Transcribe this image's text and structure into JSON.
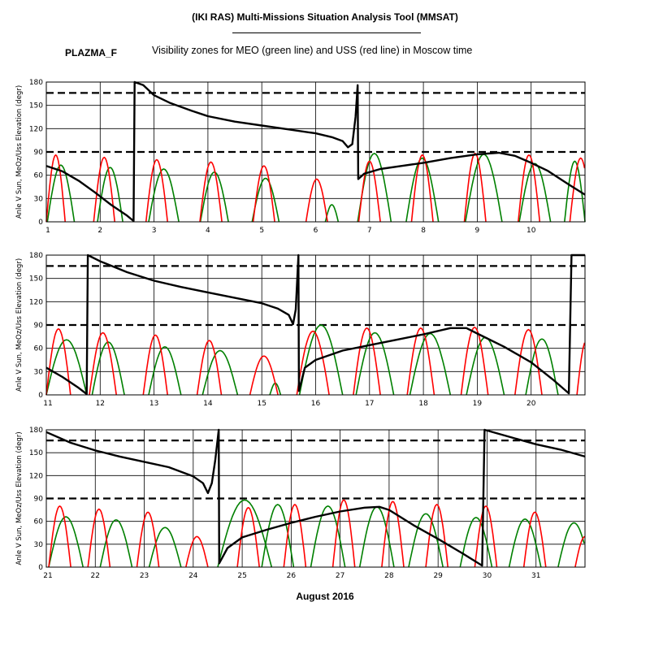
{
  "header": {
    "title": "(IKI RAS) Multi-Missions Situation Analysis Tool (MMSAT)",
    "mission": "PLAZMA_F",
    "subtitle": "Visibility zones for MEO (green line) and USS (red line) in Moscow time"
  },
  "chart_data": {
    "type": "line",
    "xlabel": "August 2016",
    "ylabel": "Anle V Sun, MeOz/Uss Elevation (degr)",
    "ylim": [
      0,
      180
    ],
    "yticks": [
      0,
      30,
      60,
      90,
      120,
      150,
      180
    ],
    "reference_lines": [
      90,
      166
    ],
    "grid": true,
    "colors": {
      "meo": "#008000",
      "uss": "#ff0000",
      "sun": "#000000"
    },
    "panels": [
      {
        "xlim": [
          1,
          11
        ],
        "xticks": [
          1,
          2,
          3,
          4,
          5,
          6,
          7,
          8,
          9,
          10
        ],
        "sun_angle": [
          [
            1.0,
            72
          ],
          [
            1.3,
            65
          ],
          [
            1.6,
            53
          ],
          [
            1.9,
            38
          ],
          [
            2.2,
            22
          ],
          [
            2.5,
            8
          ],
          [
            2.62,
            1
          ],
          [
            2.64,
            180
          ],
          [
            2.8,
            176
          ],
          [
            3.0,
            163
          ],
          [
            3.3,
            153
          ],
          [
            3.7,
            143
          ],
          [
            4.0,
            136
          ],
          [
            4.5,
            129
          ],
          [
            5.0,
            124
          ],
          [
            5.5,
            119
          ],
          [
            6.0,
            114
          ],
          [
            6.3,
            109
          ],
          [
            6.5,
            104
          ],
          [
            6.6,
            96
          ],
          [
            6.68,
            100
          ],
          [
            6.74,
            135
          ],
          [
            6.78,
            176
          ],
          [
            6.79,
            55
          ],
          [
            6.9,
            62
          ],
          [
            7.2,
            68
          ],
          [
            7.6,
            72
          ],
          [
            8.0,
            76
          ],
          [
            8.5,
            82
          ],
          [
            9.0,
            87
          ],
          [
            9.4,
            89
          ],
          [
            9.7,
            85
          ],
          [
            10.0,
            76
          ],
          [
            10.3,
            66
          ],
          [
            10.7,
            48
          ],
          [
            11.0,
            35
          ]
        ],
        "uss_passes": [
          [
            1.0,
            1.35,
            86
          ],
          [
            1.88,
            2.27,
            83
          ],
          [
            2.85,
            3.25,
            80
          ],
          [
            3.85,
            4.26,
            77
          ],
          [
            4.84,
            5.24,
            72
          ],
          [
            5.82,
            6.22,
            55
          ],
          [
            6.8,
            7.2,
            78
          ],
          [
            7.78,
            8.18,
            86
          ],
          [
            8.76,
            9.16,
            88
          ],
          [
            9.76,
            10.16,
            86
          ],
          [
            10.72,
            11.12,
            82
          ]
        ],
        "meo_passes": [
          [
            1.02,
            1.52,
            73
          ],
          [
            1.95,
            2.42,
            70
          ],
          [
            2.9,
            3.46,
            68
          ],
          [
            3.86,
            4.38,
            64
          ],
          [
            4.82,
            5.32,
            56
          ],
          [
            6.18,
            6.42,
            22
          ],
          [
            6.78,
            7.4,
            88
          ],
          [
            7.68,
            8.28,
            82
          ],
          [
            8.78,
            9.46,
            87
          ],
          [
            9.78,
            10.36,
            75
          ],
          [
            10.62,
            11.0,
            78
          ]
        ]
      },
      {
        "xlim": [
          11,
          21
        ],
        "xticks": [
          11,
          12,
          13,
          14,
          15,
          16,
          17,
          18,
          19,
          20
        ],
        "sun_angle": [
          [
            11.0,
            35
          ],
          [
            11.3,
            23
          ],
          [
            11.6,
            9
          ],
          [
            11.75,
            1
          ],
          [
            11.77,
            180
          ],
          [
            12.0,
            172
          ],
          [
            12.5,
            158
          ],
          [
            13.0,
            147
          ],
          [
            13.5,
            139
          ],
          [
            14.0,
            132
          ],
          [
            14.5,
            125
          ],
          [
            15.0,
            118
          ],
          [
            15.3,
            111
          ],
          [
            15.5,
            103
          ],
          [
            15.58,
            91
          ],
          [
            15.63,
            110
          ],
          [
            15.68,
            180
          ],
          [
            15.69,
            5
          ],
          [
            15.8,
            35
          ],
          [
            16.0,
            45
          ],
          [
            16.5,
            57
          ],
          [
            17.0,
            64
          ],
          [
            17.5,
            71
          ],
          [
            18.0,
            78
          ],
          [
            18.5,
            86
          ],
          [
            18.8,
            86
          ],
          [
            19.0,
            79
          ],
          [
            19.5,
            62
          ],
          [
            20.0,
            42
          ],
          [
            20.4,
            20
          ],
          [
            20.7,
            2
          ],
          [
            20.75,
            180
          ],
          [
            21.0,
            180
          ]
        ],
        "uss_passes": [
          [
            11.0,
            11.45,
            85
          ],
          [
            11.8,
            12.3,
            80
          ],
          [
            12.8,
            13.25,
            77
          ],
          [
            13.8,
            14.25,
            70
          ],
          [
            14.78,
            15.3,
            50
          ],
          [
            15.65,
            16.25,
            82
          ],
          [
            16.7,
            17.2,
            86
          ],
          [
            17.7,
            18.2,
            86
          ],
          [
            18.7,
            19.2,
            87
          ],
          [
            19.7,
            20.2,
            84
          ],
          [
            20.85,
            21.2,
            70
          ]
        ],
        "meo_passes": [
          [
            11.0,
            11.75,
            71
          ],
          [
            11.85,
            12.45,
            68
          ],
          [
            12.9,
            13.5,
            62
          ],
          [
            13.9,
            14.55,
            57
          ],
          [
            15.15,
            15.35,
            15
          ],
          [
            15.7,
            16.5,
            90
          ],
          [
            16.75,
            17.45,
            80
          ],
          [
            17.75,
            18.5,
            79
          ],
          [
            18.8,
            19.5,
            74
          ],
          [
            19.9,
            20.5,
            72
          ]
        ]
      },
      {
        "xlim": [
          21,
          32
        ],
        "xticks": [
          21,
          22,
          23,
          24,
          25,
          26,
          27,
          28,
          29,
          30,
          31
        ],
        "sun_angle": [
          [
            21.0,
            177
          ],
          [
            21.5,
            163
          ],
          [
            22.0,
            153
          ],
          [
            22.5,
            145
          ],
          [
            23.0,
            138
          ],
          [
            23.5,
            131
          ],
          [
            24.0,
            119
          ],
          [
            24.2,
            110
          ],
          [
            24.3,
            97
          ],
          [
            24.38,
            110
          ],
          [
            24.45,
            140
          ],
          [
            24.52,
            180
          ],
          [
            24.53,
            5
          ],
          [
            24.7,
            25
          ],
          [
            25.0,
            39
          ],
          [
            25.5,
            49
          ],
          [
            26.0,
            58
          ],
          [
            26.5,
            66
          ],
          [
            27.0,
            73
          ],
          [
            27.5,
            78
          ],
          [
            27.8,
            79
          ],
          [
            28.0,
            75
          ],
          [
            28.5,
            55
          ],
          [
            29.0,
            37
          ],
          [
            29.5,
            18
          ],
          [
            29.9,
            2
          ],
          [
            29.95,
            180
          ],
          [
            30.5,
            170
          ],
          [
            31.0,
            161
          ],
          [
            31.5,
            154
          ],
          [
            32.0,
            145
          ]
        ],
        "uss_passes": [
          [
            21.05,
            21.5,
            80
          ],
          [
            21.85,
            22.3,
            76
          ],
          [
            22.85,
            23.3,
            72
          ],
          [
            23.85,
            24.3,
            40
          ],
          [
            24.9,
            25.35,
            78
          ],
          [
            25.85,
            26.3,
            82
          ],
          [
            26.85,
            27.3,
            88
          ],
          [
            27.85,
            28.3,
            86
          ],
          [
            28.75,
            29.2,
            82
          ],
          [
            29.75,
            30.2,
            80
          ],
          [
            30.75,
            31.2,
            72
          ],
          [
            31.8,
            32.2,
            40
          ]
        ],
        "meo_passes": [
          [
            21.05,
            21.75,
            66
          ],
          [
            22.1,
            22.75,
            62
          ],
          [
            23.1,
            23.75,
            52
          ],
          [
            24.5,
            25.6,
            88
          ],
          [
            25.4,
            26.05,
            82
          ],
          [
            26.4,
            27.1,
            80
          ],
          [
            27.4,
            28.1,
            79
          ],
          [
            28.4,
            29.1,
            70
          ],
          [
            29.45,
            30.1,
            65
          ],
          [
            30.45,
            31.1,
            63
          ],
          [
            31.45,
            32.1,
            58
          ]
        ]
      }
    ]
  }
}
